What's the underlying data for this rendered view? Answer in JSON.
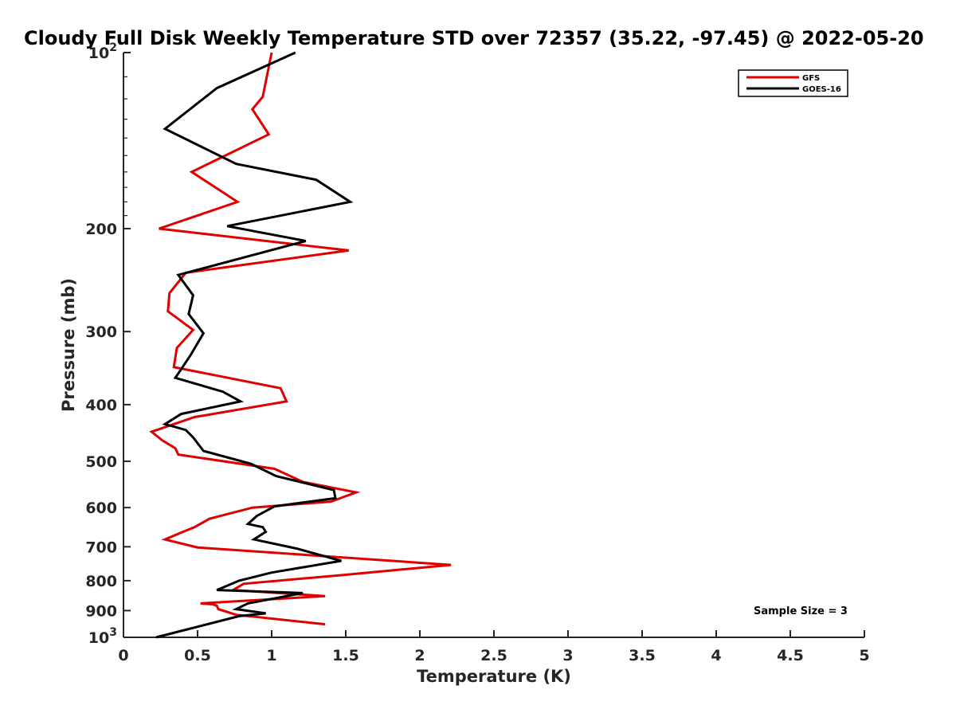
{
  "chart_data": {
    "type": "line",
    "title": "Cloudy Full Disk Weekly Temperature STD over 72357 (35.22, -97.45) @ 2022-05-20",
    "xlabel": "Temperature (K)",
    "ylabel": "Pressure (mb)",
    "xlim": [
      0,
      5
    ],
    "ylim": [
      100,
      1000
    ],
    "yscale": "log",
    "y_reversed": true,
    "x_ticks": [
      "0",
      "0.5",
      "1",
      "1.5",
      "2",
      "2.5",
      "3",
      "3.5",
      "4",
      "4.5",
      "5"
    ],
    "x_tick_values": [
      0,
      0.5,
      1,
      1.5,
      2,
      2.5,
      3,
      3.5,
      4,
      4.5,
      5
    ],
    "y_ticks": [
      {
        "value": 100,
        "base": "10",
        "exp": "2"
      },
      {
        "value": 200,
        "label": "200"
      },
      {
        "value": 300,
        "label": "300"
      },
      {
        "value": 400,
        "label": "400"
      },
      {
        "value": 500,
        "label": "500"
      },
      {
        "value": 600,
        "label": "600"
      },
      {
        "value": 700,
        "label": "700"
      },
      {
        "value": 800,
        "label": "800"
      },
      {
        "value": 900,
        "label": "900"
      },
      {
        "value": 1000,
        "base": "10",
        "exp": "3"
      }
    ],
    "grid": false,
    "legend_position": "top-right",
    "annotation": "Sample Size = 3",
    "series": [
      {
        "name": "GFS",
        "color": "#e00000",
        "x": [
          1.0,
          0.94,
          0.87,
          0.98,
          0.46,
          0.77,
          0.24,
          1.52,
          0.42,
          0.31,
          0.3,
          0.47,
          0.36,
          0.34,
          1.06,
          1.1,
          0.48,
          0.19,
          0.26,
          0.35,
          0.37,
          1.02,
          1.21,
          1.57,
          1.4,
          0.87,
          0.58,
          0.48,
          0.39,
          0.28,
          0.5,
          2.21,
          1.49,
          0.81,
          0.74,
          1.36,
          0.52,
          0.6,
          0.63,
          0.64,
          0.76,
          1.36
        ],
        "y": [
          100,
          119,
          125,
          138,
          160,
          180,
          200,
          218,
          238,
          258,
          277,
          298,
          320,
          345,
          375,
          395,
          420,
          445,
          460,
          475,
          487,
          515,
          542,
          565,
          586,
          600,
          627,
          648,
          662,
          680,
          702,
          752,
          782,
          810,
          830,
          850,
          875,
          878,
          883,
          895,
          915,
          950
        ]
      },
      {
        "name": "GOES-16",
        "color": "#000000",
        "x": [
          1.16,
          0.63,
          0.28,
          0.76,
          1.3,
          1.53,
          0.7,
          1.23,
          0.37,
          0.47,
          0.44,
          0.54,
          0.45,
          0.35,
          0.67,
          0.79,
          0.39,
          0.28,
          0.42,
          0.47,
          0.54,
          0.86,
          1.03,
          1.42,
          1.43,
          1.02,
          0.9,
          0.84,
          0.94,
          0.96,
          0.88,
          1.17,
          1.47,
          1.0,
          0.78,
          0.68,
          0.63,
          1.21,
          0.84,
          0.76,
          0.96,
          0.78,
          0.22
        ],
        "y": [
          100,
          115,
          135,
          155,
          165,
          180,
          198,
          210,
          240,
          260,
          280,
          302,
          330,
          360,
          380,
          395,
          415,
          432,
          442,
          455,
          480,
          505,
          530,
          560,
          578,
          597,
          620,
          640,
          648,
          660,
          680,
          705,
          740,
          775,
          800,
          820,
          830,
          840,
          875,
          895,
          910,
          920,
          1000
        ]
      }
    ]
  }
}
